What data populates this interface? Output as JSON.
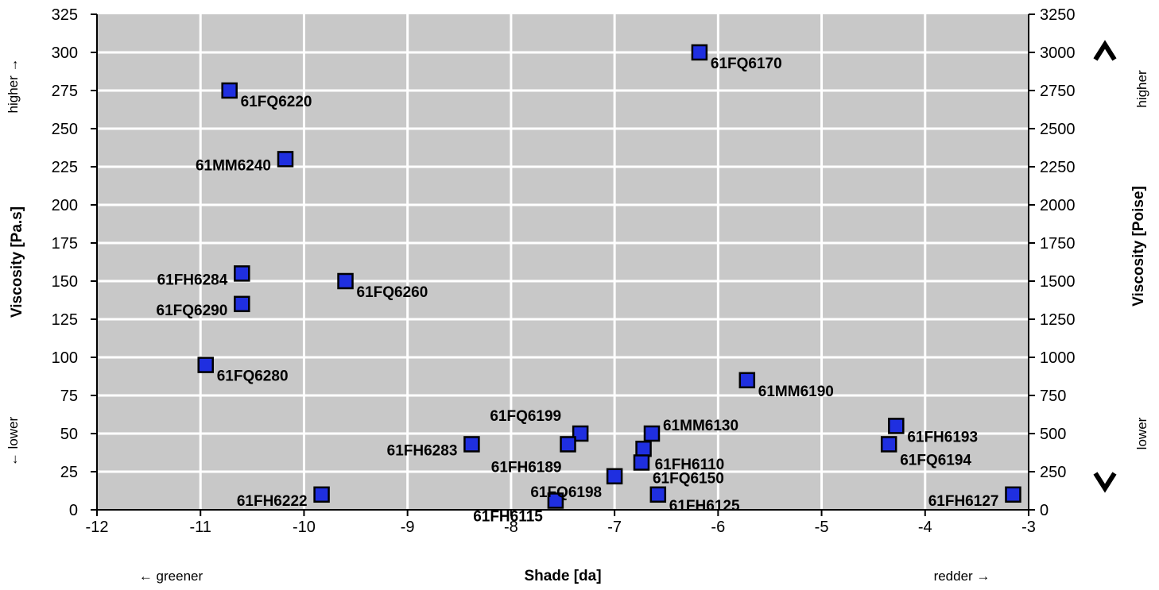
{
  "chart_data": {
    "type": "scatter",
    "title": "",
    "xlabel": "Shade [da]",
    "ylabel": "Viscosity [Pa.s]",
    "y2label": "Viscosity [Poise]",
    "xlim": [
      -12,
      -3
    ],
    "ylim": [
      0,
      325
    ],
    "y2lim": [
      0,
      3250
    ],
    "x_ticks": [
      "-12",
      "-11",
      "-10",
      "-9",
      "-8",
      "-7",
      "-6",
      "-5",
      "-4",
      "-3"
    ],
    "y_ticks": [
      "0",
      "25",
      "50",
      "75",
      "100",
      "125",
      "150",
      "175",
      "200",
      "225",
      "250",
      "275",
      "300",
      "325"
    ],
    "y2_ticks": [
      "0",
      "250",
      "500",
      "750",
      "1000",
      "1250",
      "1500",
      "1750",
      "2000",
      "2250",
      "2500",
      "2750",
      "3000",
      "3250"
    ],
    "grid": true,
    "x_annotations": {
      "left": "← greener",
      "right": "redder →"
    },
    "y_annotations": {
      "top": "higher →",
      "bottom": "← lower"
    },
    "y2_annotations": {
      "top": "higher",
      "bottom": "lower"
    },
    "marker_color": "#1f2fe0",
    "plot_background": "#c8c8c8",
    "points": [
      {
        "label": "61FQ6170",
        "x": -6.18,
        "y": 300,
        "label_side": "right"
      },
      {
        "label": "61FQ6220",
        "x": -10.72,
        "y": 275,
        "label_side": "right"
      },
      {
        "label": "61MM6240",
        "x": -10.18,
        "y": 230,
        "label_side": "left"
      },
      {
        "label": "61FH6284",
        "x": -10.6,
        "y": 155,
        "label_side": "left"
      },
      {
        "label": "61FQ6260",
        "x": -9.6,
        "y": 150,
        "label_side": "right"
      },
      {
        "label": "61FQ6290",
        "x": -10.6,
        "y": 135,
        "label_side": "left"
      },
      {
        "label": "61FQ6280",
        "x": -10.95,
        "y": 95,
        "label_side": "right"
      },
      {
        "label": "61MM6190",
        "x": -5.72,
        "y": 85,
        "label_side": "right"
      },
      {
        "label": "61FH6193",
        "x": -4.28,
        "y": 55,
        "label_side": "right"
      },
      {
        "label": "61FQ6199",
        "x": -7.33,
        "y": 50,
        "label_side": "above-left"
      },
      {
        "label": "61MM6130",
        "x": -6.64,
        "y": 50,
        "label_side": "above-right"
      },
      {
        "label": "61FH6283",
        "x": -8.38,
        "y": 43,
        "label_side": "left"
      },
      {
        "label": "61FH6189",
        "x": -7.45,
        "y": 43,
        "label_side": "below-left"
      },
      {
        "label": "61FQ6194",
        "x": -4.35,
        "y": 43,
        "label_side": "right-below"
      },
      {
        "label": "61FH6110",
        "x": -6.72,
        "y": 40,
        "label_side": "right-below"
      },
      {
        "label": "61FQ6150",
        "x": -6.74,
        "y": 31,
        "label_side": "right-below"
      },
      {
        "label": "61FQ6198",
        "x": -7.0,
        "y": 22,
        "label_side": "left-below"
      },
      {
        "label": "61FH6222",
        "x": -9.83,
        "y": 10,
        "label_side": "left"
      },
      {
        "label": "61FH6125",
        "x": -6.58,
        "y": 10,
        "label_side": "right"
      },
      {
        "label": "61FH6127",
        "x": -3.15,
        "y": 10,
        "label_side": "left"
      },
      {
        "label": "61FH6115",
        "x": -7.57,
        "y": 6,
        "label_side": "left-below"
      }
    ]
  }
}
